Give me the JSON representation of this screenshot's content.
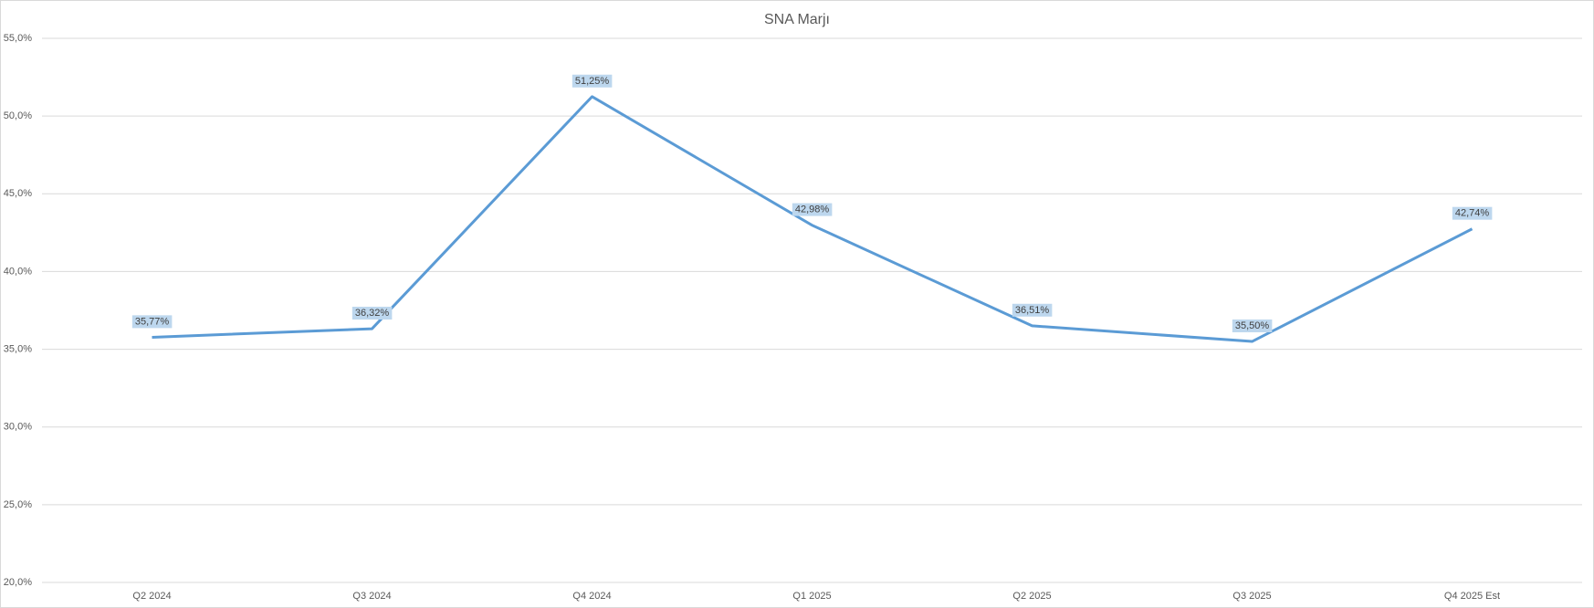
{
  "chart_data": {
    "type": "line",
    "title": "SNA Marjı",
    "categories": [
      "Q2 2024",
      "Q3 2024",
      "Q4 2024",
      "Q1 2025",
      "Q2 2025",
      "Q3 2025",
      "Q4 2025 Est"
    ],
    "series": [
      {
        "color": "#5b9bd5",
        "values": [
          35.77,
          36.32,
          51.25,
          42.98,
          36.51,
          35.5,
          42.74
        ],
        "value_labels": [
          "35,77%",
          "36,32%",
          "51,25%",
          "42,98%",
          "36,51%",
          "35,50%",
          "42,74%"
        ]
      }
    ],
    "ylim": [
      20,
      55
    ],
    "yticks": [
      {
        "value": 20,
        "label": "20,0%"
      },
      {
        "value": 25,
        "label": "25,0%"
      },
      {
        "value": 30,
        "label": "30,0%"
      },
      {
        "value": 35,
        "label": "35,0%"
      },
      {
        "value": 40,
        "label": "40,0%"
      },
      {
        "value": 45,
        "label": "45,0%"
      },
      {
        "value": 50,
        "label": "50,0%"
      },
      {
        "value": 55,
        "label": "55,0%"
      }
    ],
    "grid": true
  }
}
